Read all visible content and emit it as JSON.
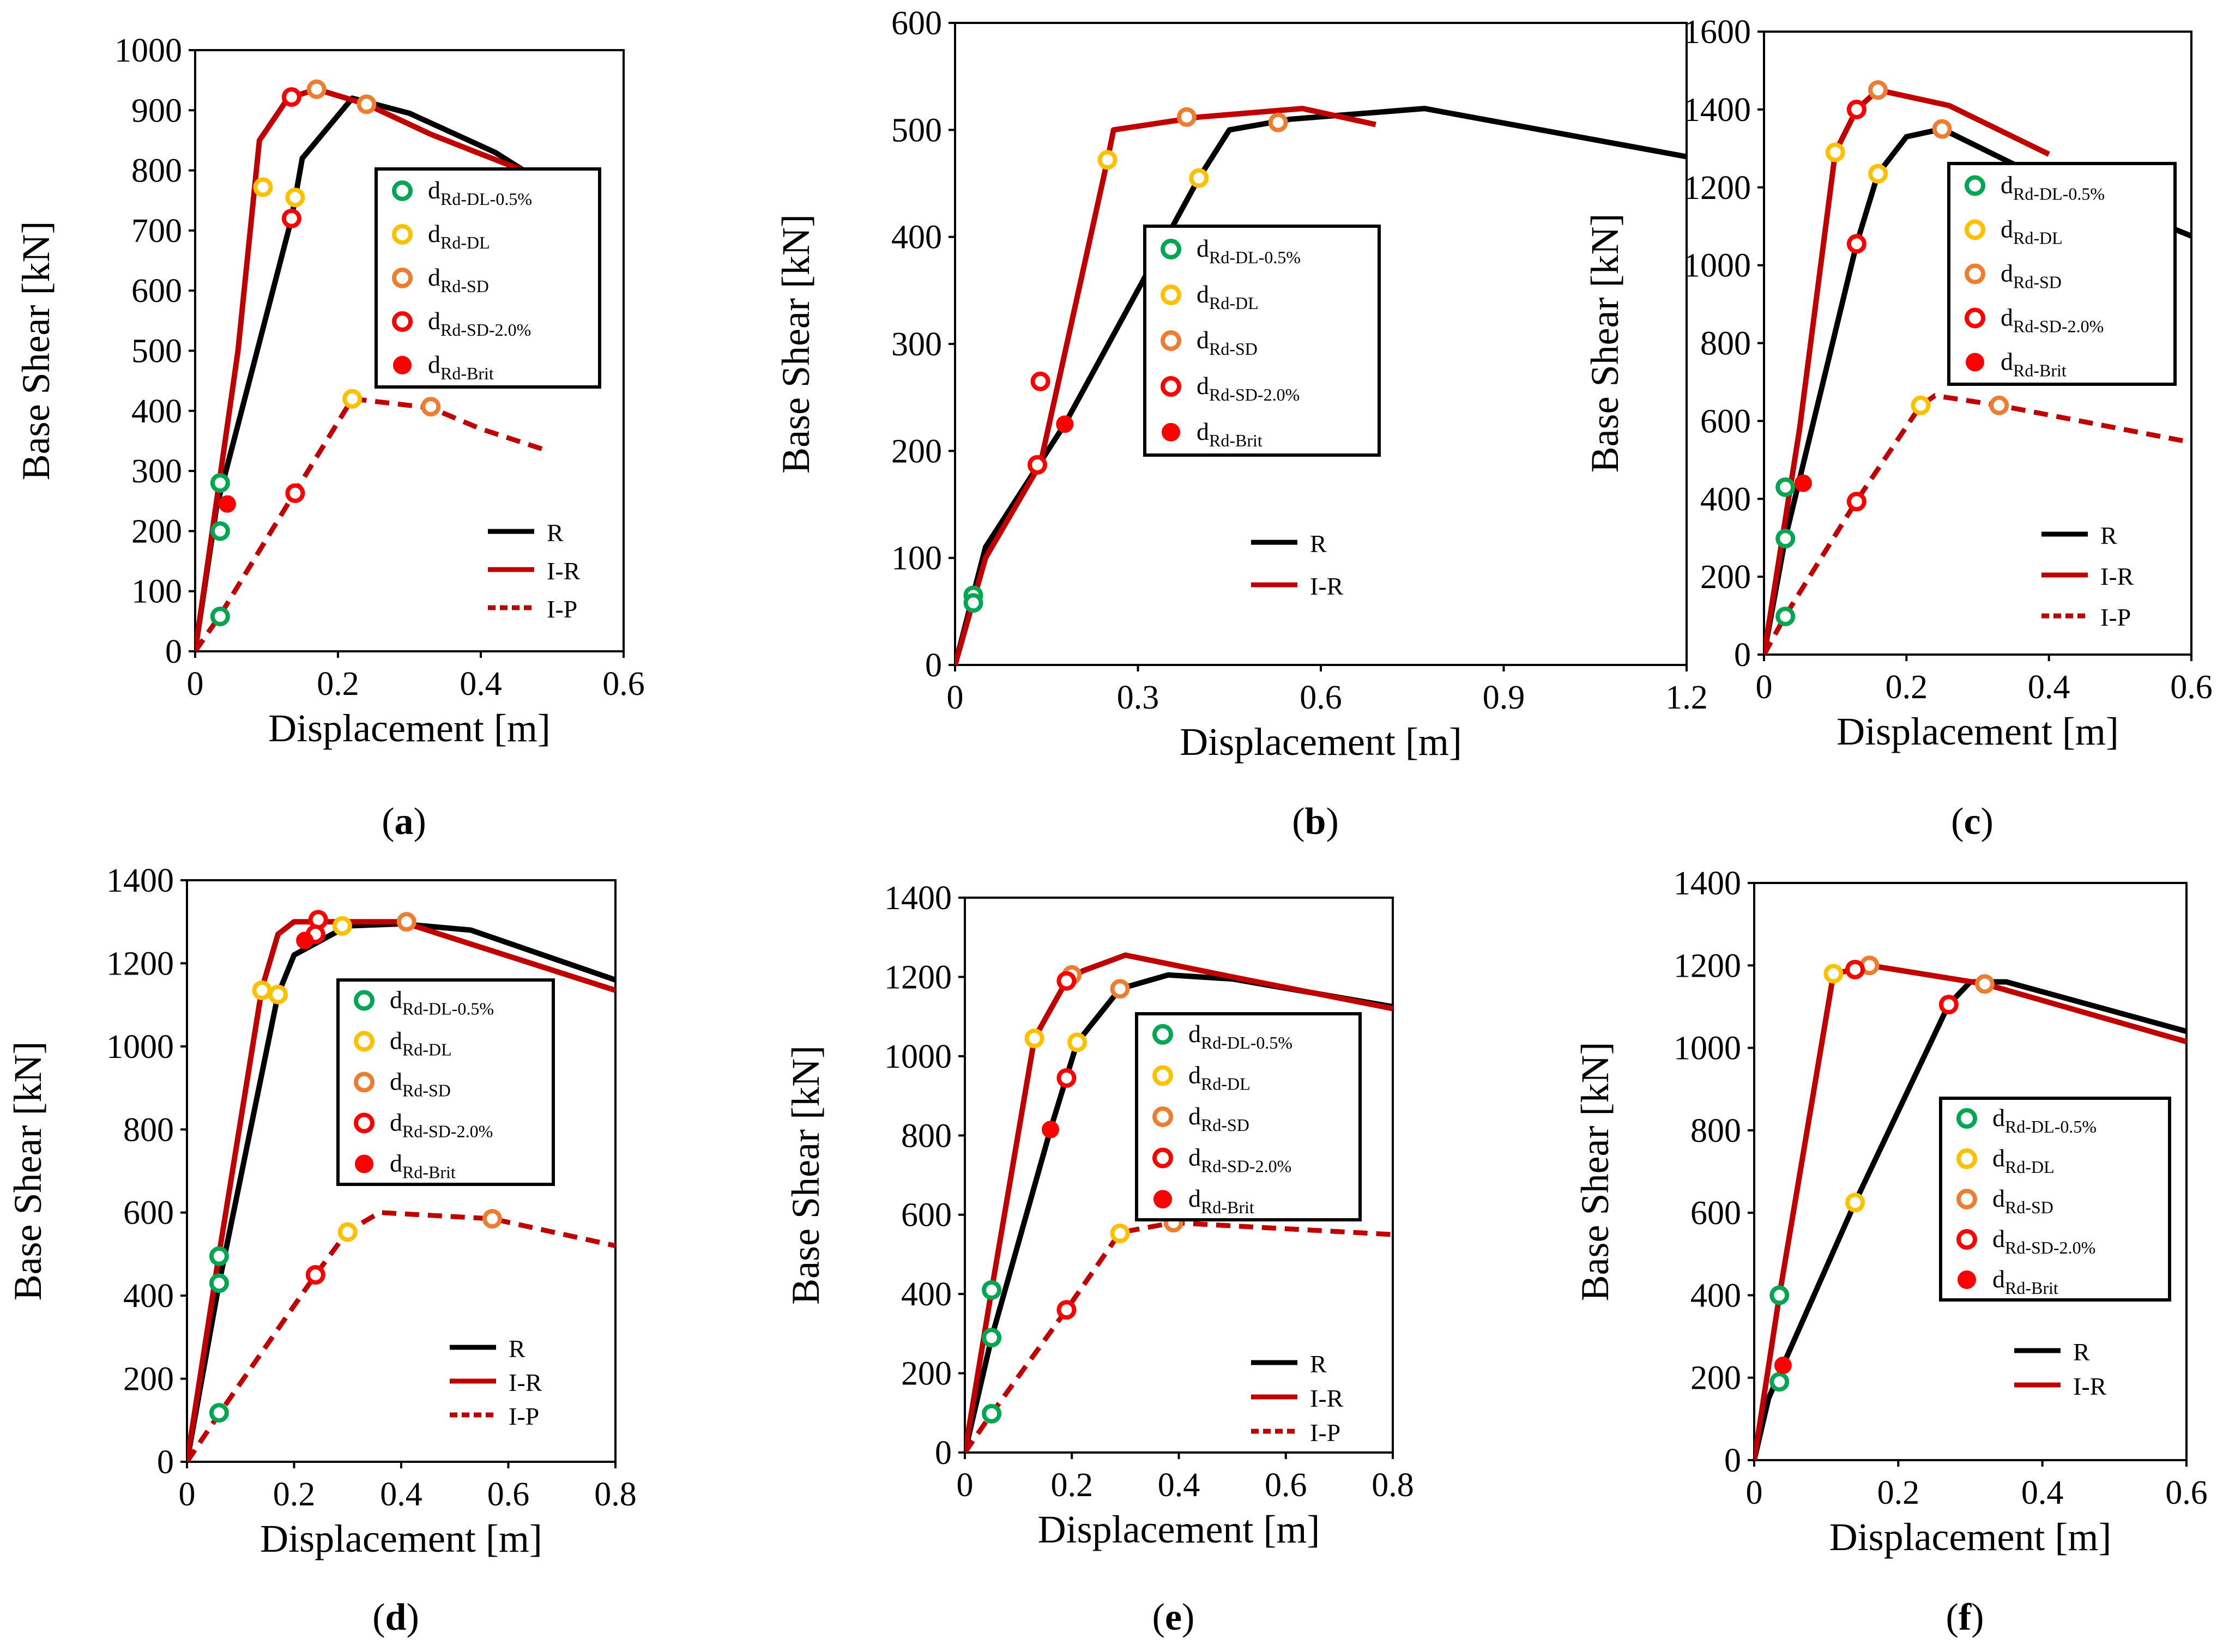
{
  "colors": {
    "R": "#000000",
    "I-R": "#c00000",
    "I-P": "#c00000",
    "dRd-DL-0.5%": "#00a651",
    "dRd-DL": "#ffc000",
    "dRd-SD": "#ed7d31",
    "dRd-SD-2.0%": "#ff0000",
    "dRd-Brit": "#ff0000"
  },
  "legend_markers": [
    {
      "key": "dRd-DL-0.5%",
      "main": "d",
      "sub": "Rd-DL-0.5%",
      "filled": false
    },
    {
      "key": "dRd-DL",
      "main": "d",
      "sub": "Rd-DL",
      "filled": false
    },
    {
      "key": "dRd-SD",
      "main": "d",
      "sub": "Rd-SD",
      "filled": false
    },
    {
      "key": "dRd-SD-2.0%",
      "main": "d",
      "sub": "Rd-SD-2.0%",
      "filled": false
    },
    {
      "key": "dRd-Brit",
      "main": "d",
      "sub": "Rd-Brit",
      "filled": true
    }
  ],
  "legend_lines": [
    {
      "key": "R",
      "label": "R",
      "dash": false
    },
    {
      "key": "I-R",
      "label": "I-R",
      "dash": false
    },
    {
      "key": "I-P",
      "label": "I-P",
      "dash": true
    }
  ],
  "chart_data": [
    {
      "type": "line",
      "label": "(a)",
      "letter": "a",
      "xlabel": "Displacement [m]",
      "ylabel": "Base Shear [kN]",
      "xlim": [
        0,
        0.6
      ],
      "ylim": [
        0,
        1000
      ],
      "xticks": [
        "0",
        "0.2",
        "0.4",
        "0.6"
      ],
      "yticks": [
        "0",
        "100",
        "200",
        "300",
        "400",
        "500",
        "600",
        "700",
        "800",
        "900",
        "1000"
      ],
      "series": [
        {
          "name": "R",
          "x": [
            0,
            0.03,
            0.135,
            0.15,
            0.22,
            0.3,
            0.42,
            0.5
          ],
          "y": [
            0,
            240,
            720,
            820,
            920,
            895,
            830,
            770
          ]
        },
        {
          "name": "I-R",
          "x": [
            0,
            0.06,
            0.09,
            0.13,
            0.17,
            0.24,
            0.33,
            0.48
          ],
          "y": [
            0,
            500,
            850,
            920,
            935,
            910,
            860,
            790
          ]
        },
        {
          "name": "I-P",
          "x": [
            0,
            0.035,
            0.14,
            0.22,
            0.33,
            0.4,
            0.49
          ],
          "y": [
            0,
            60,
            265,
            420,
            405,
            370,
            335
          ]
        }
      ],
      "markers": [
        {
          "type": "dRd-DL-0.5%",
          "x": 0.035,
          "y": 280
        },
        {
          "type": "dRd-DL-0.5%",
          "x": 0.035,
          "y": 200
        },
        {
          "type": "dRd-DL-0.5%",
          "x": 0.035,
          "y": 58
        },
        {
          "type": "dRd-DL",
          "x": 0.095,
          "y": 772
        },
        {
          "type": "dRd-DL",
          "x": 0.14,
          "y": 755
        },
        {
          "type": "dRd-DL",
          "x": 0.22,
          "y": 420
        },
        {
          "type": "dRd-SD",
          "x": 0.17,
          "y": 935
        },
        {
          "type": "dRd-SD",
          "x": 0.24,
          "y": 910
        },
        {
          "type": "dRd-SD",
          "x": 0.33,
          "y": 407
        },
        {
          "type": "dRd-SD-2.0%",
          "x": 0.135,
          "y": 922
        },
        {
          "type": "dRd-SD-2.0%",
          "x": 0.135,
          "y": 720
        },
        {
          "type": "dRd-SD-2.0%",
          "x": 0.14,
          "y": 263
        },
        {
          "type": "dRd-Brit",
          "x": 0.045,
          "y": 245
        }
      ],
      "legend_lines": [
        "R",
        "I-R",
        "I-P"
      ],
      "legend_markers": [
        "dRd-DL-0.5%",
        "dRd-DL",
        "dRd-SD",
        "dRd-SD-2.0%",
        "dRd-Brit"
      ]
    },
    {
      "type": "line",
      "label": "(b)",
      "letter": "b",
      "xlabel": "Displacement [m]",
      "ylabel": "Base Shear [kN]",
      "xlim": [
        0,
        1.2
      ],
      "ylim": [
        0,
        600
      ],
      "xticks": [
        "0",
        "0.3",
        "0.6",
        "0.9",
        "1.2"
      ],
      "yticks": [
        "0",
        "100",
        "200",
        "300",
        "400",
        "500",
        "600"
      ],
      "series": [
        {
          "name": "R",
          "x": [
            0,
            0.05,
            0.18,
            0.4,
            0.45,
            0.55,
            0.77,
            1.2
          ],
          "y": [
            0,
            110,
            225,
            455,
            500,
            510,
            520,
            475
          ]
        },
        {
          "name": "I-R",
          "x": [
            0,
            0.05,
            0.14,
            0.25,
            0.26,
            0.4,
            0.57,
            0.69
          ],
          "y": [
            0,
            100,
            188,
            472,
            500,
            512,
            520,
            505
          ]
        }
      ],
      "markers": [
        {
          "type": "dRd-DL-0.5%",
          "x": 0.03,
          "y": 65
        },
        {
          "type": "dRd-DL-0.5%",
          "x": 0.03,
          "y": 58
        },
        {
          "type": "dRd-DL",
          "x": 0.25,
          "y": 472
        },
        {
          "type": "dRd-DL",
          "x": 0.4,
          "y": 455
        },
        {
          "type": "dRd-SD",
          "x": 0.38,
          "y": 512
        },
        {
          "type": "dRd-SD",
          "x": 0.53,
          "y": 507
        },
        {
          "type": "dRd-SD-2.0%",
          "x": 0.14,
          "y": 265
        },
        {
          "type": "dRd-SD-2.0%",
          "x": 0.135,
          "y": 187
        },
        {
          "type": "dRd-Brit",
          "x": 0.18,
          "y": 225
        }
      ],
      "legend_lines": [
        "R",
        "I-R"
      ],
      "legend_markers": [
        "dRd-DL-0.5%",
        "dRd-DL",
        "dRd-SD",
        "dRd-SD-2.0%",
        "dRd-Brit"
      ]
    },
    {
      "type": "line",
      "label": "(c)",
      "letter": "c",
      "xlabel": "Displacement [m]",
      "ylabel": "Base Shear [kN]",
      "xlim": [
        0,
        0.6
      ],
      "ylim": [
        0,
        1600
      ],
      "xticks": [
        "0",
        "0.2",
        "0.4",
        "0.6"
      ],
      "yticks": [
        "0",
        "200",
        "400",
        "600",
        "800",
        "1000",
        "1200",
        "1400",
        "1600"
      ],
      "series": [
        {
          "name": "R",
          "x": [
            0,
            0.03,
            0.13,
            0.16,
            0.2,
            0.25,
            0.35,
            0.6
          ],
          "y": [
            0,
            300,
            1055,
            1235,
            1330,
            1350,
            1260,
            1075
          ]
        },
        {
          "name": "I-R",
          "x": [
            0,
            0.05,
            0.1,
            0.13,
            0.16,
            0.26,
            0.4
          ],
          "y": [
            0,
            580,
            1290,
            1400,
            1450,
            1410,
            1285
          ]
        },
        {
          "name": "I-P",
          "x": [
            0,
            0.03,
            0.13,
            0.22,
            0.24,
            0.33,
            0.6
          ],
          "y": [
            0,
            100,
            395,
            640,
            665,
            640,
            545
          ]
        }
      ],
      "markers": [
        {
          "type": "dRd-DL-0.5%",
          "x": 0.03,
          "y": 430
        },
        {
          "type": "dRd-DL-0.5%",
          "x": 0.03,
          "y": 298
        },
        {
          "type": "dRd-DL-0.5%",
          "x": 0.03,
          "y": 98
        },
        {
          "type": "dRd-DL",
          "x": 0.1,
          "y": 1290
        },
        {
          "type": "dRd-DL",
          "x": 0.16,
          "y": 1235
        },
        {
          "type": "dRd-DL",
          "x": 0.22,
          "y": 640
        },
        {
          "type": "dRd-SD",
          "x": 0.16,
          "y": 1450
        },
        {
          "type": "dRd-SD",
          "x": 0.25,
          "y": 1350
        },
        {
          "type": "dRd-SD",
          "x": 0.33,
          "y": 640
        },
        {
          "type": "dRd-SD-2.0%",
          "x": 0.13,
          "y": 1400
        },
        {
          "type": "dRd-SD-2.0%",
          "x": 0.13,
          "y": 1055
        },
        {
          "type": "dRd-SD-2.0%",
          "x": 0.13,
          "y": 393
        },
        {
          "type": "dRd-Brit",
          "x": 0.055,
          "y": 440
        }
      ],
      "legend_lines": [
        "R",
        "I-R",
        "I-P"
      ],
      "legend_markers": [
        "dRd-DL-0.5%",
        "dRd-DL",
        "dRd-SD",
        "dRd-SD-2.0%",
        "dRd-Brit"
      ]
    },
    {
      "type": "line",
      "label": "(d)",
      "letter": "d",
      "xlabel": "Displacement [m]",
      "ylabel": "Base Shear [kN]",
      "xlim": [
        0,
        0.8
      ],
      "ylim": [
        0,
        1400
      ],
      "xticks": [
        "0",
        "0.2",
        "0.4",
        "0.6",
        "0.8"
      ],
      "yticks": [
        "0",
        "200",
        "400",
        "600",
        "800",
        "1000",
        "1200",
        "1400"
      ],
      "series": [
        {
          "name": "R",
          "x": [
            0,
            0.06,
            0.17,
            0.2,
            0.3,
            0.4,
            0.53,
            0.8
          ],
          "y": [
            0,
            430,
            1125,
            1220,
            1290,
            1295,
            1280,
            1160
          ]
        },
        {
          "name": "I-R",
          "x": [
            0,
            0.06,
            0.14,
            0.17,
            0.2,
            0.3,
            0.4,
            0.8
          ],
          "y": [
            0,
            500,
            1140,
            1270,
            1300,
            1300,
            1300,
            1135
          ]
        },
        {
          "name": "I-P",
          "x": [
            0,
            0.06,
            0.24,
            0.3,
            0.36,
            0.57,
            0.8
          ],
          "y": [
            0,
            115,
            450,
            555,
            600,
            585,
            520
          ]
        }
      ],
      "markers": [
        {
          "type": "dRd-DL-0.5%",
          "x": 0.06,
          "y": 495
        },
        {
          "type": "dRd-DL-0.5%",
          "x": 0.06,
          "y": 430
        },
        {
          "type": "dRd-DL-0.5%",
          "x": 0.06,
          "y": 118
        },
        {
          "type": "dRd-DL",
          "x": 0.14,
          "y": 1135
        },
        {
          "type": "dRd-DL",
          "x": 0.17,
          "y": 1125
        },
        {
          "type": "dRd-DL",
          "x": 0.29,
          "y": 1290
        },
        {
          "type": "dRd-DL",
          "x": 0.3,
          "y": 553
        },
        {
          "type": "dRd-SD",
          "x": 0.41,
          "y": 1300
        },
        {
          "type": "dRd-SD",
          "x": 0.57,
          "y": 585
        },
        {
          "type": "dRd-SD-2.0%",
          "x": 0.245,
          "y": 1305
        },
        {
          "type": "dRd-SD-2.0%",
          "x": 0.24,
          "y": 1270
        },
        {
          "type": "dRd-SD-2.0%",
          "x": 0.24,
          "y": 450
        },
        {
          "type": "dRd-Brit",
          "x": 0.22,
          "y": 1255
        }
      ],
      "legend_lines": [
        "R",
        "I-R",
        "I-P"
      ],
      "legend_markers": [
        "dRd-DL-0.5%",
        "dRd-DL",
        "dRd-SD",
        "dRd-SD-2.0%",
        "dRd-Brit"
      ]
    },
    {
      "type": "line",
      "label": "(e)",
      "letter": "e",
      "xlabel": "Displacement [m]",
      "ylabel": "Base Shear [kN]",
      "xlim": [
        0,
        0.8
      ],
      "ylim": [
        0,
        1400
      ],
      "xticks": [
        "0",
        "0.2",
        "0.4",
        "0.6",
        "0.8"
      ],
      "yticks": [
        "0",
        "200",
        "400",
        "600",
        "800",
        "1000",
        "1200",
        "1400"
      ],
      "series": [
        {
          "name": "R",
          "x": [
            0,
            0.05,
            0.16,
            0.21,
            0.29,
            0.38,
            0.5,
            0.8
          ],
          "y": [
            0,
            290,
            815,
            1035,
            1170,
            1205,
            1195,
            1125
          ]
        },
        {
          "name": "I-R",
          "x": [
            0,
            0.05,
            0.13,
            0.19,
            0.22,
            0.3,
            0.5,
            0.8
          ],
          "y": [
            0,
            410,
            1045,
            1190,
            1215,
            1255,
            1200,
            1120
          ]
        },
        {
          "name": "I-P",
          "x": [
            0,
            0.05,
            0.19,
            0.29,
            0.39,
            0.8
          ],
          "y": [
            0,
            98,
            360,
            555,
            580,
            550
          ]
        }
      ],
      "markers": [
        {
          "type": "dRd-DL-0.5%",
          "x": 0.05,
          "y": 410
        },
        {
          "type": "dRd-DL-0.5%",
          "x": 0.05,
          "y": 290
        },
        {
          "type": "dRd-DL-0.5%",
          "x": 0.05,
          "y": 98
        },
        {
          "type": "dRd-DL",
          "x": 0.13,
          "y": 1045
        },
        {
          "type": "dRd-DL",
          "x": 0.21,
          "y": 1035
        },
        {
          "type": "dRd-DL",
          "x": 0.29,
          "y": 553
        },
        {
          "type": "dRd-SD",
          "x": 0.2,
          "y": 1205
        },
        {
          "type": "dRd-SD",
          "x": 0.29,
          "y": 1170
        },
        {
          "type": "dRd-SD",
          "x": 0.39,
          "y": 580
        },
        {
          "type": "dRd-SD-2.0%",
          "x": 0.19,
          "y": 1190
        },
        {
          "type": "dRd-SD-2.0%",
          "x": 0.19,
          "y": 945
        },
        {
          "type": "dRd-SD-2.0%",
          "x": 0.19,
          "y": 360
        },
        {
          "type": "dRd-Brit",
          "x": 0.16,
          "y": 815
        }
      ],
      "legend_lines": [
        "R",
        "I-R",
        "I-P"
      ],
      "legend_markers": [
        "dRd-DL-0.5%",
        "dRd-DL",
        "dRd-SD",
        "dRd-SD-2.0%",
        "dRd-Brit"
      ]
    },
    {
      "type": "line",
      "label": "(f)",
      "letter": "f",
      "xlabel": "Displacement [m]",
      "ylabel": "Base Shear [kN]",
      "xlim": [
        0,
        0.6
      ],
      "ylim": [
        0,
        1400
      ],
      "xticks": [
        "0",
        "0.2",
        "0.4",
        "0.6"
      ],
      "yticks": [
        "0",
        "200",
        "400",
        "600",
        "800",
        "1000",
        "1200",
        "1400"
      ],
      "series": [
        {
          "name": "R",
          "x": [
            0,
            0.02,
            0.04,
            0.14,
            0.27,
            0.3,
            0.35,
            0.6
          ],
          "y": [
            0,
            150,
            230,
            625,
            1105,
            1160,
            1160,
            1040
          ]
        },
        {
          "name": "I-R",
          "x": [
            0,
            0.035,
            0.11,
            0.14,
            0.16,
            0.32,
            0.6
          ],
          "y": [
            0,
            400,
            1180,
            1190,
            1200,
            1155,
            1015
          ]
        }
      ],
      "markers": [
        {
          "type": "dRd-DL-0.5%",
          "x": 0.035,
          "y": 400
        },
        {
          "type": "dRd-DL-0.5%",
          "x": 0.035,
          "y": 190
        },
        {
          "type": "dRd-DL",
          "x": 0.11,
          "y": 1180
        },
        {
          "type": "dRd-DL",
          "x": 0.14,
          "y": 625
        },
        {
          "type": "dRd-SD",
          "x": 0.16,
          "y": 1200
        },
        {
          "type": "dRd-SD",
          "x": 0.32,
          "y": 1155
        },
        {
          "type": "dRd-SD-2.0%",
          "x": 0.14,
          "y": 1190
        },
        {
          "type": "dRd-SD-2.0%",
          "x": 0.27,
          "y": 1105
        },
        {
          "type": "dRd-Brit",
          "x": 0.04,
          "y": 230
        }
      ],
      "legend_lines": [
        "R",
        "I-R"
      ],
      "legend_markers": [
        "dRd-DL-0.5%",
        "dRd-DL",
        "dRd-SD",
        "dRd-SD-2.0%",
        "dRd-Brit"
      ]
    }
  ]
}
